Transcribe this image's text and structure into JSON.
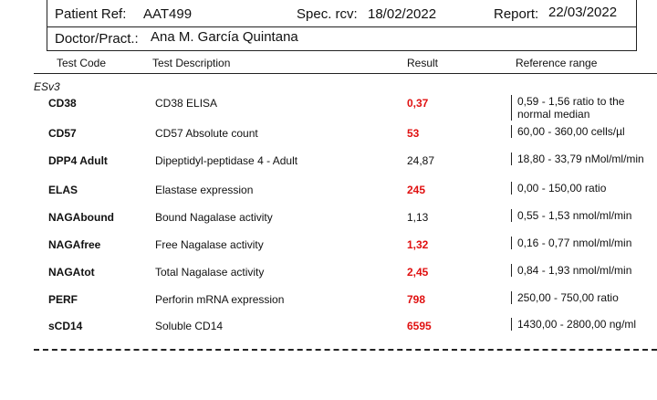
{
  "header": {
    "patient_ref_label": "Patient Ref:",
    "patient_ref": "AAT499",
    "spec_rcv_label": "Spec. rcv:",
    "spec_rcv": "18/02/2022",
    "report_label": "Report:",
    "report": "22/03/2022",
    "doctor_label": "Doctor/Pract.:",
    "doctor": "Ana M. García Quintana"
  },
  "columns": {
    "code": "Test Code",
    "description": "Test Description",
    "result": "Result",
    "reference": "Reference range"
  },
  "section": "ESv3",
  "rows": [
    {
      "code": "CD38",
      "description": "CD38 ELISA",
      "result": "0,37",
      "flag": true,
      "reference": "0,59 - 1,56 ratio to the normal median"
    },
    {
      "code": "CD57",
      "description": "CD57 Absolute count",
      "result": "53",
      "flag": true,
      "reference": "60,00 - 360,00 cells/µl"
    },
    {
      "code": "DPP4 Adult",
      "description": "Dipeptidyl-peptidase 4 - Adult",
      "result": "24,87",
      "flag": false,
      "reference": "18,80 - 33,79 nMol/ml/min"
    },
    {
      "code": "ELAS",
      "description": "Elastase expression",
      "result": "245",
      "flag": true,
      "reference": "0,00 - 150,00 ratio"
    },
    {
      "code": "NAGAbound",
      "description": "Bound Nagalase activity",
      "result": "1,13",
      "flag": false,
      "reference": "0,55 - 1,53 nmol/ml/min"
    },
    {
      "code": "NAGAfree",
      "description": "Free Nagalase activity",
      "result": "1,32",
      "flag": true,
      "reference": "0,16 - 0,77 nmol/ml/min"
    },
    {
      "code": "NAGAtot",
      "description": "Total Nagalase activity",
      "result": "2,45",
      "flag": true,
      "reference": "0,84 - 1,93 nmol/ml/min"
    },
    {
      "code": "PERF",
      "description": "Perforin mRNA expression",
      "result": "798",
      "flag": true,
      "reference": "250,00 - 750,00 ratio"
    },
    {
      "code": "sCD14",
      "description": "Soluble CD14",
      "result": "6595",
      "flag": true,
      "reference": "1430,00 - 2800,00 ng/ml"
    }
  ],
  "colors": {
    "flag": "#e01010",
    "text": "#111111"
  }
}
